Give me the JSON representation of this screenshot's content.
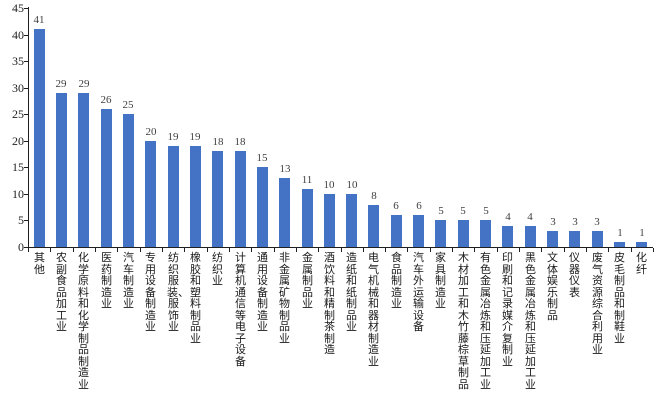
{
  "chart_data": {
    "type": "bar",
    "title": "",
    "xlabel": "",
    "ylabel": "",
    "categories": [
      "其他",
      "农副食品加工业",
      "化学原料和化学制品制造业",
      "医药制造业",
      "汽车制造业",
      "专用设备制造业",
      "纺织服装、服饰业",
      "橡胶和塑料制品业",
      "纺织业",
      "计算机通信等电子设备",
      "通用设备制造业",
      "非金属矿物制品业",
      "金属制品业",
      "酒饮料和精制茶制造",
      "造纸和纸制品业",
      "电气机械和器材制造业",
      "食品制造业",
      "汽车外运输设备",
      "家具制造业",
      "木材加工和木竹藤棕草制品",
      "有色金属冶炼和压延加工业",
      "印刷和记录媒介复制业",
      "黑色金属冶炼和压延加工业",
      "文体娱乐制品",
      "仪器仪表",
      "废气资源综合利用业",
      "皮毛制品和制鞋业",
      "化纤"
    ],
    "values": [
      41,
      29,
      29,
      26,
      25,
      20,
      19,
      19,
      18,
      18,
      15,
      13,
      11,
      10,
      10,
      8,
      6,
      6,
      5,
      5,
      5,
      4,
      4,
      3,
      3,
      3,
      1,
      1
    ],
    "ylim": [
      0,
      45
    ],
    "yticks": [
      0,
      5,
      10,
      15,
      20,
      25,
      30,
      35,
      40,
      45
    ],
    "grid": "off",
    "legend": "none",
    "colors": {
      "bar": "#4472C4",
      "axis": "#1f1f1f",
      "value_label": "#404040",
      "category_label": "#1a1a1a"
    }
  }
}
